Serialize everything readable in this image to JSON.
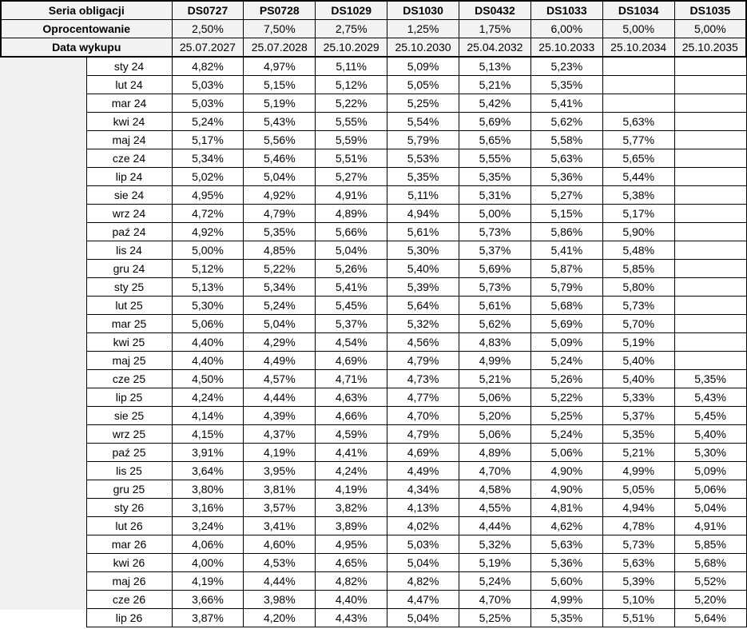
{
  "header": {
    "series_label": "Seria obligacji",
    "rate_label": "Oprocentowanie",
    "date_label": "Data wykupu"
  },
  "bonds": [
    {
      "name": "DS0727",
      "rate": "2,50%",
      "maturity": "25.07.2027"
    },
    {
      "name": "PS0728",
      "rate": "7,50%",
      "maturity": "25.07.2028"
    },
    {
      "name": "DS1029",
      "rate": "2,75%",
      "maturity": "25.10.2029"
    },
    {
      "name": "DS1030",
      "rate": "1,25%",
      "maturity": "25.10.2030"
    },
    {
      "name": "DS0432",
      "rate": "1,75%",
      "maturity": "25.04.2032"
    },
    {
      "name": "DS1033",
      "rate": "6,00%",
      "maturity": "25.10.2033"
    },
    {
      "name": "DS1034",
      "rate": "5,00%",
      "maturity": "25.10.2034"
    },
    {
      "name": "DS1035",
      "rate": "5,00%",
      "maturity": "25.10.2035"
    }
  ],
  "rows": [
    {
      "month": "sty 24",
      "values": [
        "4,82%",
        "4,97%",
        "5,11%",
        "5,09%",
        "5,13%",
        "5,23%",
        "",
        ""
      ]
    },
    {
      "month": "lut 24",
      "values": [
        "5,03%",
        "5,15%",
        "5,12%",
        "5,05%",
        "5,21%",
        "5,35%",
        "",
        ""
      ]
    },
    {
      "month": "mar 24",
      "values": [
        "5,03%",
        "5,19%",
        "5,22%",
        "5,25%",
        "5,42%",
        "5,41%",
        "",
        ""
      ]
    },
    {
      "month": "kwi 24",
      "values": [
        "5,24%",
        "5,43%",
        "5,55%",
        "5,54%",
        "5,69%",
        "5,62%",
        "5,63%",
        ""
      ]
    },
    {
      "month": "maj 24",
      "values": [
        "5,17%",
        "5,56%",
        "5,59%",
        "5,79%",
        "5,65%",
        "5,58%",
        "5,77%",
        ""
      ]
    },
    {
      "month": "cze 24",
      "values": [
        "5,34%",
        "5,46%",
        "5,51%",
        "5,53%",
        "5,55%",
        "5,63%",
        "5,65%",
        ""
      ]
    },
    {
      "month": "lip 24",
      "values": [
        "5,02%",
        "5,04%",
        "5,27%",
        "5,35%",
        "5,35%",
        "5,36%",
        "5,44%",
        ""
      ]
    },
    {
      "month": "sie 24",
      "values": [
        "4,95%",
        "4,92%",
        "4,91%",
        "5,11%",
        "5,31%",
        "5,27%",
        "5,38%",
        ""
      ]
    },
    {
      "month": "wrz 24",
      "values": [
        "4,72%",
        "4,79%",
        "4,89%",
        "4,94%",
        "5,00%",
        "5,15%",
        "5,17%",
        ""
      ]
    },
    {
      "month": "paź 24",
      "values": [
        "4,92%",
        "5,35%",
        "5,66%",
        "5,61%",
        "5,73%",
        "5,86%",
        "5,90%",
        ""
      ]
    },
    {
      "month": "lis 24",
      "values": [
        "5,00%",
        "4,85%",
        "5,04%",
        "5,30%",
        "5,37%",
        "5,41%",
        "5,48%",
        ""
      ]
    },
    {
      "month": "gru 24",
      "values": [
        "5,12%",
        "5,22%",
        "5,26%",
        "5,40%",
        "5,69%",
        "5,87%",
        "5,85%",
        ""
      ]
    },
    {
      "month": "sty 25",
      "values": [
        "5,13%",
        "5,34%",
        "5,41%",
        "5,39%",
        "5,73%",
        "5,79%",
        "5,80%",
        ""
      ]
    },
    {
      "month": "lut 25",
      "values": [
        "5,30%",
        "5,24%",
        "5,45%",
        "5,64%",
        "5,61%",
        "5,68%",
        "5,73%",
        ""
      ]
    },
    {
      "month": "mar 25",
      "values": [
        "5,06%",
        "5,04%",
        "5,37%",
        "5,32%",
        "5,62%",
        "5,69%",
        "5,70%",
        ""
      ]
    },
    {
      "month": "kwi 25",
      "values": [
        "4,40%",
        "4,29%",
        "4,54%",
        "4,56%",
        "4,83%",
        "5,09%",
        "5,19%",
        ""
      ]
    },
    {
      "month": "maj 25",
      "values": [
        "4,40%",
        "4,49%",
        "4,69%",
        "4,79%",
        "4,99%",
        "5,24%",
        "5,40%",
        ""
      ]
    },
    {
      "month": "cze 25",
      "values": [
        "4,50%",
        "4,57%",
        "4,71%",
        "4,73%",
        "5,21%",
        "5,26%",
        "5,40%",
        "5,35%"
      ]
    },
    {
      "month": "lip 25",
      "values": [
        "4,24%",
        "4,44%",
        "4,63%",
        "4,77%",
        "5,06%",
        "5,22%",
        "5,33%",
        "5,43%"
      ]
    },
    {
      "month": "sie 25",
      "values": [
        "4,14%",
        "4,39%",
        "4,66%",
        "4,70%",
        "5,20%",
        "5,25%",
        "5,37%",
        "5,45%"
      ]
    },
    {
      "month": "wrz 25",
      "values": [
        "4,15%",
        "4,37%",
        "4,59%",
        "4,79%",
        "5,06%",
        "5,24%",
        "5,35%",
        "5,40%"
      ]
    },
    {
      "month": "paź 25",
      "values": [
        "3,91%",
        "4,19%",
        "4,41%",
        "4,69%",
        "4,89%",
        "5,06%",
        "5,21%",
        "5,30%"
      ]
    },
    {
      "month": "lis 25",
      "values": [
        "3,64%",
        "3,95%",
        "4,24%",
        "4,49%",
        "4,70%",
        "4,90%",
        "4,99%",
        "5,09%"
      ]
    },
    {
      "month": "gru 25",
      "values": [
        "3,80%",
        "3,81%",
        "4,19%",
        "4,34%",
        "4,58%",
        "4,90%",
        "5,05%",
        "5,06%"
      ]
    },
    {
      "month": "sty 26",
      "values": [
        "3,16%",
        "3,57%",
        "3,82%",
        "4,13%",
        "4,55%",
        "4,81%",
        "4,94%",
        "5,04%"
      ]
    },
    {
      "month": "lut 26",
      "values": [
        "3,24%",
        "3,41%",
        "3,89%",
        "4,02%",
        "4,44%",
        "4,62%",
        "4,78%",
        "4,91%"
      ]
    },
    {
      "month": "mar 26",
      "values": [
        "4,06%",
        "4,60%",
        "4,95%",
        "5,03%",
        "5,32%",
        "5,63%",
        "5,73%",
        "5,85%"
      ]
    },
    {
      "month": "kwi 26",
      "values": [
        "4,00%",
        "4,53%",
        "4,65%",
        "5,04%",
        "5,19%",
        "5,36%",
        "5,63%",
        "5,68%"
      ]
    },
    {
      "month": "maj 26",
      "values": [
        "4,19%",
        "4,44%",
        "4,82%",
        "4,82%",
        "5,24%",
        "5,60%",
        "5,39%",
        "5,52%"
      ]
    },
    {
      "month": "cze 26",
      "values": [
        "3,66%",
        "3,98%",
        "4,40%",
        "4,47%",
        "4,70%",
        "4,99%",
        "5,10%",
        "5,20%"
      ]
    },
    {
      "month": "lip 26",
      "values": [
        "3,87%",
        "4,20%",
        "4,43%",
        "5,04%",
        "5,25%",
        "5,35%",
        "5,51%",
        "5,64%"
      ]
    }
  ]
}
